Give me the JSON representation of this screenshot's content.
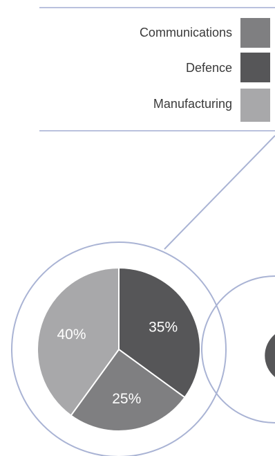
{
  "chart_data": {
    "type": "pie",
    "legend": {
      "placement": "top-right",
      "entries": [
        {
          "label": "Communications",
          "color": "#7f7f81"
        },
        {
          "label": "Defence",
          "color": "#565658"
        },
        {
          "label": "Manufacturing",
          "color": "#a8a8aa"
        }
      ]
    },
    "slices": [
      {
        "category": "Defence",
        "value": 35,
        "label": "35%",
        "color": "#565658"
      },
      {
        "category": "Communications",
        "value": 25,
        "label": "25%",
        "color": "#7f7f81"
      },
      {
        "category": "Manufacturing",
        "value": 40,
        "label": "40%",
        "color": "#a8a8aa"
      }
    ]
  },
  "style": {
    "accent_line": "#a9b3d4",
    "divider_line": "#b9c1dd"
  }
}
